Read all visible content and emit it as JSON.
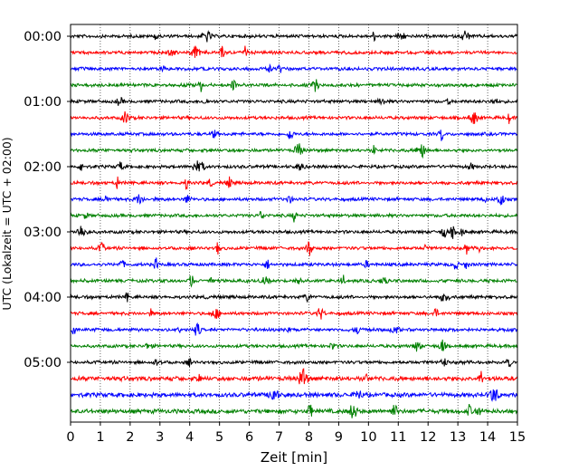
{
  "chart_data": {
    "type": "line",
    "title": "",
    "xlabel": "Zeit  [min]",
    "ylabel": "UTC (Lokalzeit = UTC + 02:00)",
    "xlim": [
      0,
      15
    ],
    "x_ticks": [
      "0",
      "1",
      "2",
      "3",
      "4",
      "5",
      "6",
      "7",
      "8",
      "9",
      "10",
      "11",
      "12",
      "13",
      "14",
      "15"
    ],
    "y_tick_labels": [
      "00:00",
      "01:00",
      "02:00",
      "03:00",
      "04:00",
      "05:00"
    ],
    "trace_count": 24,
    "trace_interval_minutes": 15,
    "trace_colors": [
      "#000000",
      "#ff0000",
      "#0000ff",
      "#008000"
    ],
    "grid": "vertical dotted lines at each minute",
    "legend": "none"
  }
}
